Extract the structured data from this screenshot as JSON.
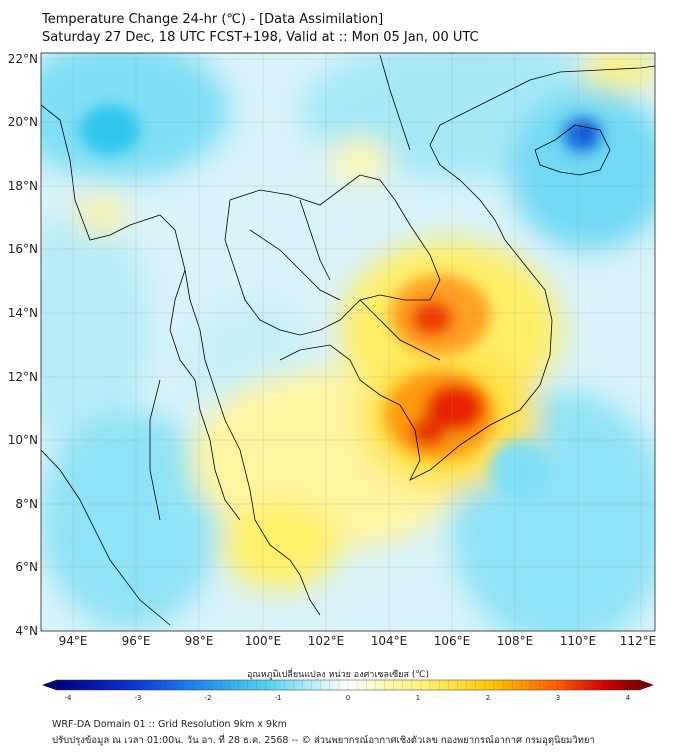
{
  "title_line1": "Temperature Change 24-hr (℃) - [Data Assimilation]",
  "title_line2": "Saturday 27 Dec, 18 UTC FCST+198, Valid at :: Mon 05 Jan, 00 UTC",
  "lat_ticks": [
    "22°N",
    "20°N",
    "18°N",
    "16°N",
    "14°N",
    "12°N",
    "10°N",
    "8°N",
    "6°N",
    "4°N"
  ],
  "lon_ticks": [
    "94°E",
    "96°E",
    "98°E",
    "100°E",
    "102°E",
    "104°E",
    "106°E",
    "108°E",
    "110°E",
    "112°E"
  ],
  "colorbar": {
    "title": "อุณหภูมิเปลี่ยนแปลง หน่วย องศาเซลเซียส (℃)",
    "min": -4,
    "max": 4,
    "labels": [
      "-4",
      "-3",
      "-2",
      "-1",
      "0",
      "1",
      "2",
      "3",
      "4"
    ]
  },
  "colors": {
    "cold_extreme": "#00007a",
    "cold": "#1e6fd9",
    "cool": "#4fd4f0",
    "neutral": "#ffffff",
    "warm": "#fff06a",
    "hot": "#ff7a00",
    "hot_extreme": "#7a0000",
    "coast": "#000000"
  },
  "footer_line1": "WRF-DA Domain 01 :: Grid Resolution 9km x 9km",
  "footer_line2": "ปรับปรุงข้อมูล ณ เวลา 01:00น. วัน อา. ที่ 28 ธ.ค. 2568 -- © ส่วนพยากรณ์อากาศเชิงตัวเลข กองพยากรณ์อากาศ กรมอุตุนิยมวิทยา"
}
